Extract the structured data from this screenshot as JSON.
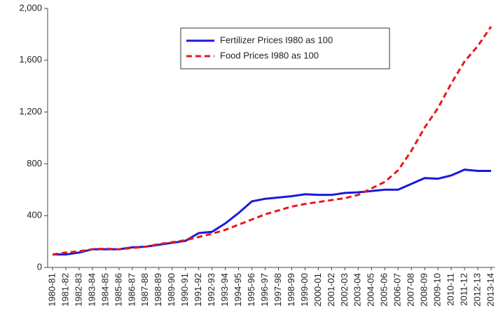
{
  "chart_data": {
    "type": "line",
    "categories": [
      "1980-81",
      "1981-82",
      "1982-83",
      "1983-84",
      "1984-85",
      "1985-86",
      "1986-87",
      "1987-88",
      "1988-89",
      "1989-90",
      "1990-91",
      "1991-92",
      "1992-93",
      "1993-94",
      "1994-95",
      "1995-96",
      "1996-97",
      "1997-98",
      "1998-99",
      "1999-00",
      "2000-01",
      "2001-02",
      "2002-03",
      "2003-04",
      "2004-05",
      "2005-06",
      "2006-07",
      "2007-08",
      "2008-09",
      "2009-10",
      "2010-11",
      "2011-12",
      "2012-13",
      "2013-14"
    ],
    "series": [
      {
        "name": "Fertilizer Prices I980 as 100",
        "color": "#1a1adc",
        "dash": false,
        "values": [
          100,
          100,
          115,
          140,
          140,
          140,
          155,
          160,
          175,
          190,
          205,
          265,
          275,
          340,
          420,
          510,
          530,
          540,
          550,
          565,
          560,
          560,
          575,
          580,
          590,
          600,
          600,
          645,
          690,
          685,
          710,
          755,
          745,
          745
        ]
      },
      {
        "name": "Food Prices I980 as 100",
        "color": "#e81818",
        "dash": true,
        "values": [
          100,
          115,
          125,
          140,
          145,
          140,
          150,
          160,
          180,
          195,
          210,
          235,
          260,
          290,
          330,
          370,
          410,
          440,
          470,
          490,
          505,
          520,
          535,
          560,
          610,
          660,
          750,
          900,
          1080,
          1230,
          1420,
          1590,
          1710,
          1860
        ]
      }
    ],
    "ylim": [
      0,
      2000
    ],
    "yticks": [
      0,
      400,
      800,
      {
        "value": 1200,
        "label": "1,200"
      },
      {
        "value": 1600,
        "label": "1,600"
      },
      {
        "value": 2000,
        "label": "2,000"
      }
    ]
  }
}
